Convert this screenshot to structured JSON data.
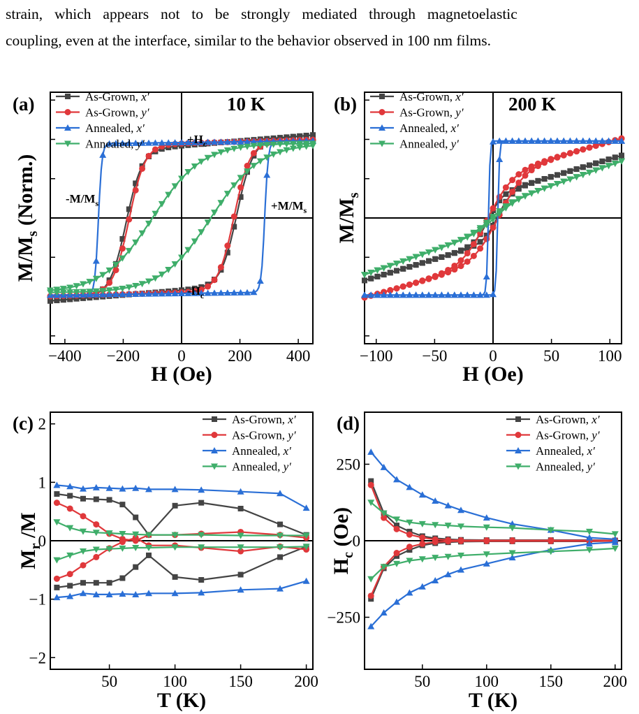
{
  "paragraph": {
    "line1": "strain, which appears not to be strongly mediated through magnetoelastic",
    "line2": "coupling, even at the interface, similar to the behavior observed in 100 nm films."
  },
  "legend_labels": [
    "As-Grown, x′",
    "As-Grown, y′",
    "Annealed, x′",
    "Annealed, y′"
  ],
  "colors": {
    "as_grown_x": "#444444",
    "as_grown_y": "#e0383b",
    "annealed_x": "#2a6fd6",
    "annealed_y": "#3fae6a"
  },
  "chart_data": [
    {
      "panel": "(a)",
      "type": "line",
      "temperature_label": "10 K",
      "xlabel": "H (Oe)",
      "ylabel": "M/M_s (Norm.)",
      "xlim": [
        -450,
        450
      ],
      "ylim": [
        -1.6,
        1.6
      ],
      "xticks": [
        -400,
        -200,
        0,
        200,
        400
      ],
      "xtick_labels": [
        "−400",
        "−200",
        "0",
        "200",
        "400"
      ],
      "annotations": [
        "+H_c",
        "-H_c",
        "-M/M_s",
        "+M/M_s"
      ],
      "series": [
        {
          "name": "As-Grown, x′",
          "loop": {
            "ms": 0.92,
            "hc": 190,
            "width": 55,
            "slope": 0.0003
          }
        },
        {
          "name": "As-Grown, y′",
          "loop": {
            "ms": 0.95,
            "hc": 180,
            "width": 55,
            "slope": 0.0001
          }
        },
        {
          "name": "Annealed, x′",
          "loop": {
            "ms": 0.96,
            "hc": 285,
            "width": 12,
            "slope": 5e-05
          }
        },
        {
          "name": "Annealed, y′",
          "loop": {
            "ms": 0.95,
            "hc": 100,
            "width": 170,
            "slope": 0
          }
        }
      ]
    },
    {
      "panel": "(b)",
      "type": "line",
      "temperature_label": "200 K",
      "xlabel": "H (Oe)",
      "ylabel": "M/M_s",
      "xlim": [
        -110,
        110
      ],
      "ylim": [
        -1.6,
        1.6
      ],
      "xticks": [
        -100,
        -50,
        0,
        50,
        100
      ],
      "xtick_labels": [
        "−100",
        "−50",
        "0",
        "50",
        "100"
      ],
      "series": [
        {
          "name": "As-Grown, x′",
          "loop": {
            "ms": 0.3,
            "hc": 4,
            "width": 12,
            "slope": 0.0045
          }
        },
        {
          "name": "As-Grown, y′",
          "loop": {
            "ms": 0.55,
            "hc": 5,
            "width": 22,
            "slope": 0.0042
          }
        },
        {
          "name": "Annealed, x′",
          "loop": {
            "ms": 0.98,
            "hc": 4,
            "width": 1.5,
            "slope": 0
          }
        },
        {
          "name": "Annealed, y′",
          "loop": {
            "ms": 0.15,
            "hc": 2,
            "width": 18,
            "slope": 0.0052
          }
        }
      ]
    },
    {
      "panel": "(c)",
      "type": "line",
      "xlabel": "T (K)",
      "ylabel": "M_r /M_s",
      "xlim": [
        5,
        205
      ],
      "ylim": [
        -2.2,
        2.2
      ],
      "xticks": [
        50,
        100,
        150,
        200
      ],
      "yticks": [
        -2,
        -1,
        0,
        1,
        2
      ],
      "series": [
        {
          "name": "As-Grown, x′",
          "x": [
            10,
            20,
            30,
            40,
            50,
            60,
            70,
            80,
            100,
            120,
            150,
            180,
            200
          ],
          "pos": [
            0.8,
            0.77,
            0.72,
            0.71,
            0.7,
            0.62,
            0.4,
            0.1,
            0.6,
            0.65,
            0.55,
            0.28,
            0.1
          ],
          "neg": [
            -0.8,
            -0.77,
            -0.72,
            -0.72,
            -0.72,
            -0.64,
            -0.45,
            -0.25,
            -0.62,
            -0.67,
            -0.58,
            -0.28,
            -0.1
          ]
        },
        {
          "name": "As-Grown, y′",
          "x": [
            10,
            20,
            30,
            40,
            50,
            60,
            70,
            80,
            100,
            120,
            150,
            180,
            200
          ],
          "pos": [
            0.65,
            0.55,
            0.42,
            0.28,
            0.12,
            0.03,
            0.0,
            0.1,
            0.1,
            0.12,
            0.15,
            0.1,
            0.05
          ],
          "neg": [
            -0.65,
            -0.57,
            -0.42,
            -0.28,
            -0.13,
            -0.02,
            0.05,
            -0.08,
            -0.08,
            -0.12,
            -0.18,
            -0.1,
            -0.15
          ]
        },
        {
          "name": "Annealed, x′",
          "x": [
            10,
            20,
            30,
            40,
            50,
            60,
            70,
            80,
            100,
            120,
            150,
            180,
            200
          ],
          "pos": [
            0.95,
            0.93,
            0.89,
            0.91,
            0.9,
            0.89,
            0.9,
            0.88,
            0.88,
            0.87,
            0.84,
            0.81,
            0.56
          ],
          "neg": [
            -0.97,
            -0.95,
            -0.9,
            -0.92,
            -0.92,
            -0.91,
            -0.92,
            -0.9,
            -0.9,
            -0.89,
            -0.84,
            -0.82,
            -0.69
          ]
        },
        {
          "name": "Annealed, y′",
          "x": [
            10,
            20,
            30,
            40,
            50,
            60,
            70,
            80,
            100,
            120,
            150,
            180,
            200
          ],
          "pos": [
            0.32,
            0.22,
            0.16,
            0.14,
            0.13,
            0.12,
            0.11,
            0.1,
            0.1,
            0.1,
            0.09,
            0.09,
            0.09
          ],
          "neg": [
            -0.33,
            -0.25,
            -0.18,
            -0.15,
            -0.14,
            -0.13,
            -0.12,
            -0.12,
            -0.11,
            -0.11,
            -0.11,
            -0.11,
            -0.1
          ]
        }
      ]
    },
    {
      "panel": "(d)",
      "type": "line",
      "xlabel": "T (K)",
      "ylabel": "H_c (Oe)",
      "xlim": [
        5,
        205
      ],
      "ylim": [
        -420,
        420
      ],
      "xticks": [
        50,
        100,
        150,
        200
      ],
      "yticks": [
        -250,
        0,
        250
      ],
      "ytick_labels": [
        "−250",
        "0",
        "250"
      ],
      "series": [
        {
          "name": "As-Grown, x′",
          "x": [
            10,
            20,
            30,
            40,
            50,
            60,
            70,
            80,
            100,
            120,
            150,
            180,
            200
          ],
          "pos": [
            195,
            90,
            50,
            30,
            15,
            8,
            5,
            3,
            2,
            2,
            2,
            2,
            1
          ],
          "neg": [
            -190,
            -90,
            -50,
            -30,
            -15,
            -8,
            -5,
            -3,
            -2,
            -2,
            -2,
            -2,
            -1
          ]
        },
        {
          "name": "As-Grown, y′",
          "x": [
            10,
            20,
            30,
            40,
            50,
            60,
            70,
            80,
            100,
            120,
            150,
            180,
            200
          ],
          "pos": [
            182,
            75,
            38,
            20,
            10,
            4,
            2,
            1,
            1,
            1,
            1,
            1,
            1
          ],
          "neg": [
            -180,
            -85,
            -40,
            -20,
            -10,
            -4,
            -2,
            -1,
            -1,
            -1,
            -1,
            -1,
            -1
          ]
        },
        {
          "name": "Annealed, x′",
          "x": [
            10,
            20,
            30,
            40,
            50,
            60,
            70,
            80,
            100,
            120,
            150,
            180,
            200
          ],
          "pos": [
            290,
            240,
            200,
            175,
            150,
            130,
            115,
            100,
            75,
            55,
            35,
            10,
            5
          ],
          "neg": [
            -280,
            -235,
            -200,
            -170,
            -150,
            -130,
            -110,
            -95,
            -75,
            -55,
            -30,
            -10,
            -5
          ]
        },
        {
          "name": "Annealed, y′",
          "x": [
            10,
            20,
            30,
            40,
            50,
            60,
            70,
            80,
            100,
            120,
            150,
            180,
            200
          ],
          "pos": [
            125,
            90,
            70,
            60,
            55,
            52,
            50,
            47,
            44,
            42,
            35,
            30,
            22
          ],
          "neg": [
            -125,
            -85,
            -75,
            -65,
            -60,
            -55,
            -52,
            -48,
            -44,
            -40,
            -35,
            -30,
            -25
          ]
        }
      ]
    }
  ]
}
